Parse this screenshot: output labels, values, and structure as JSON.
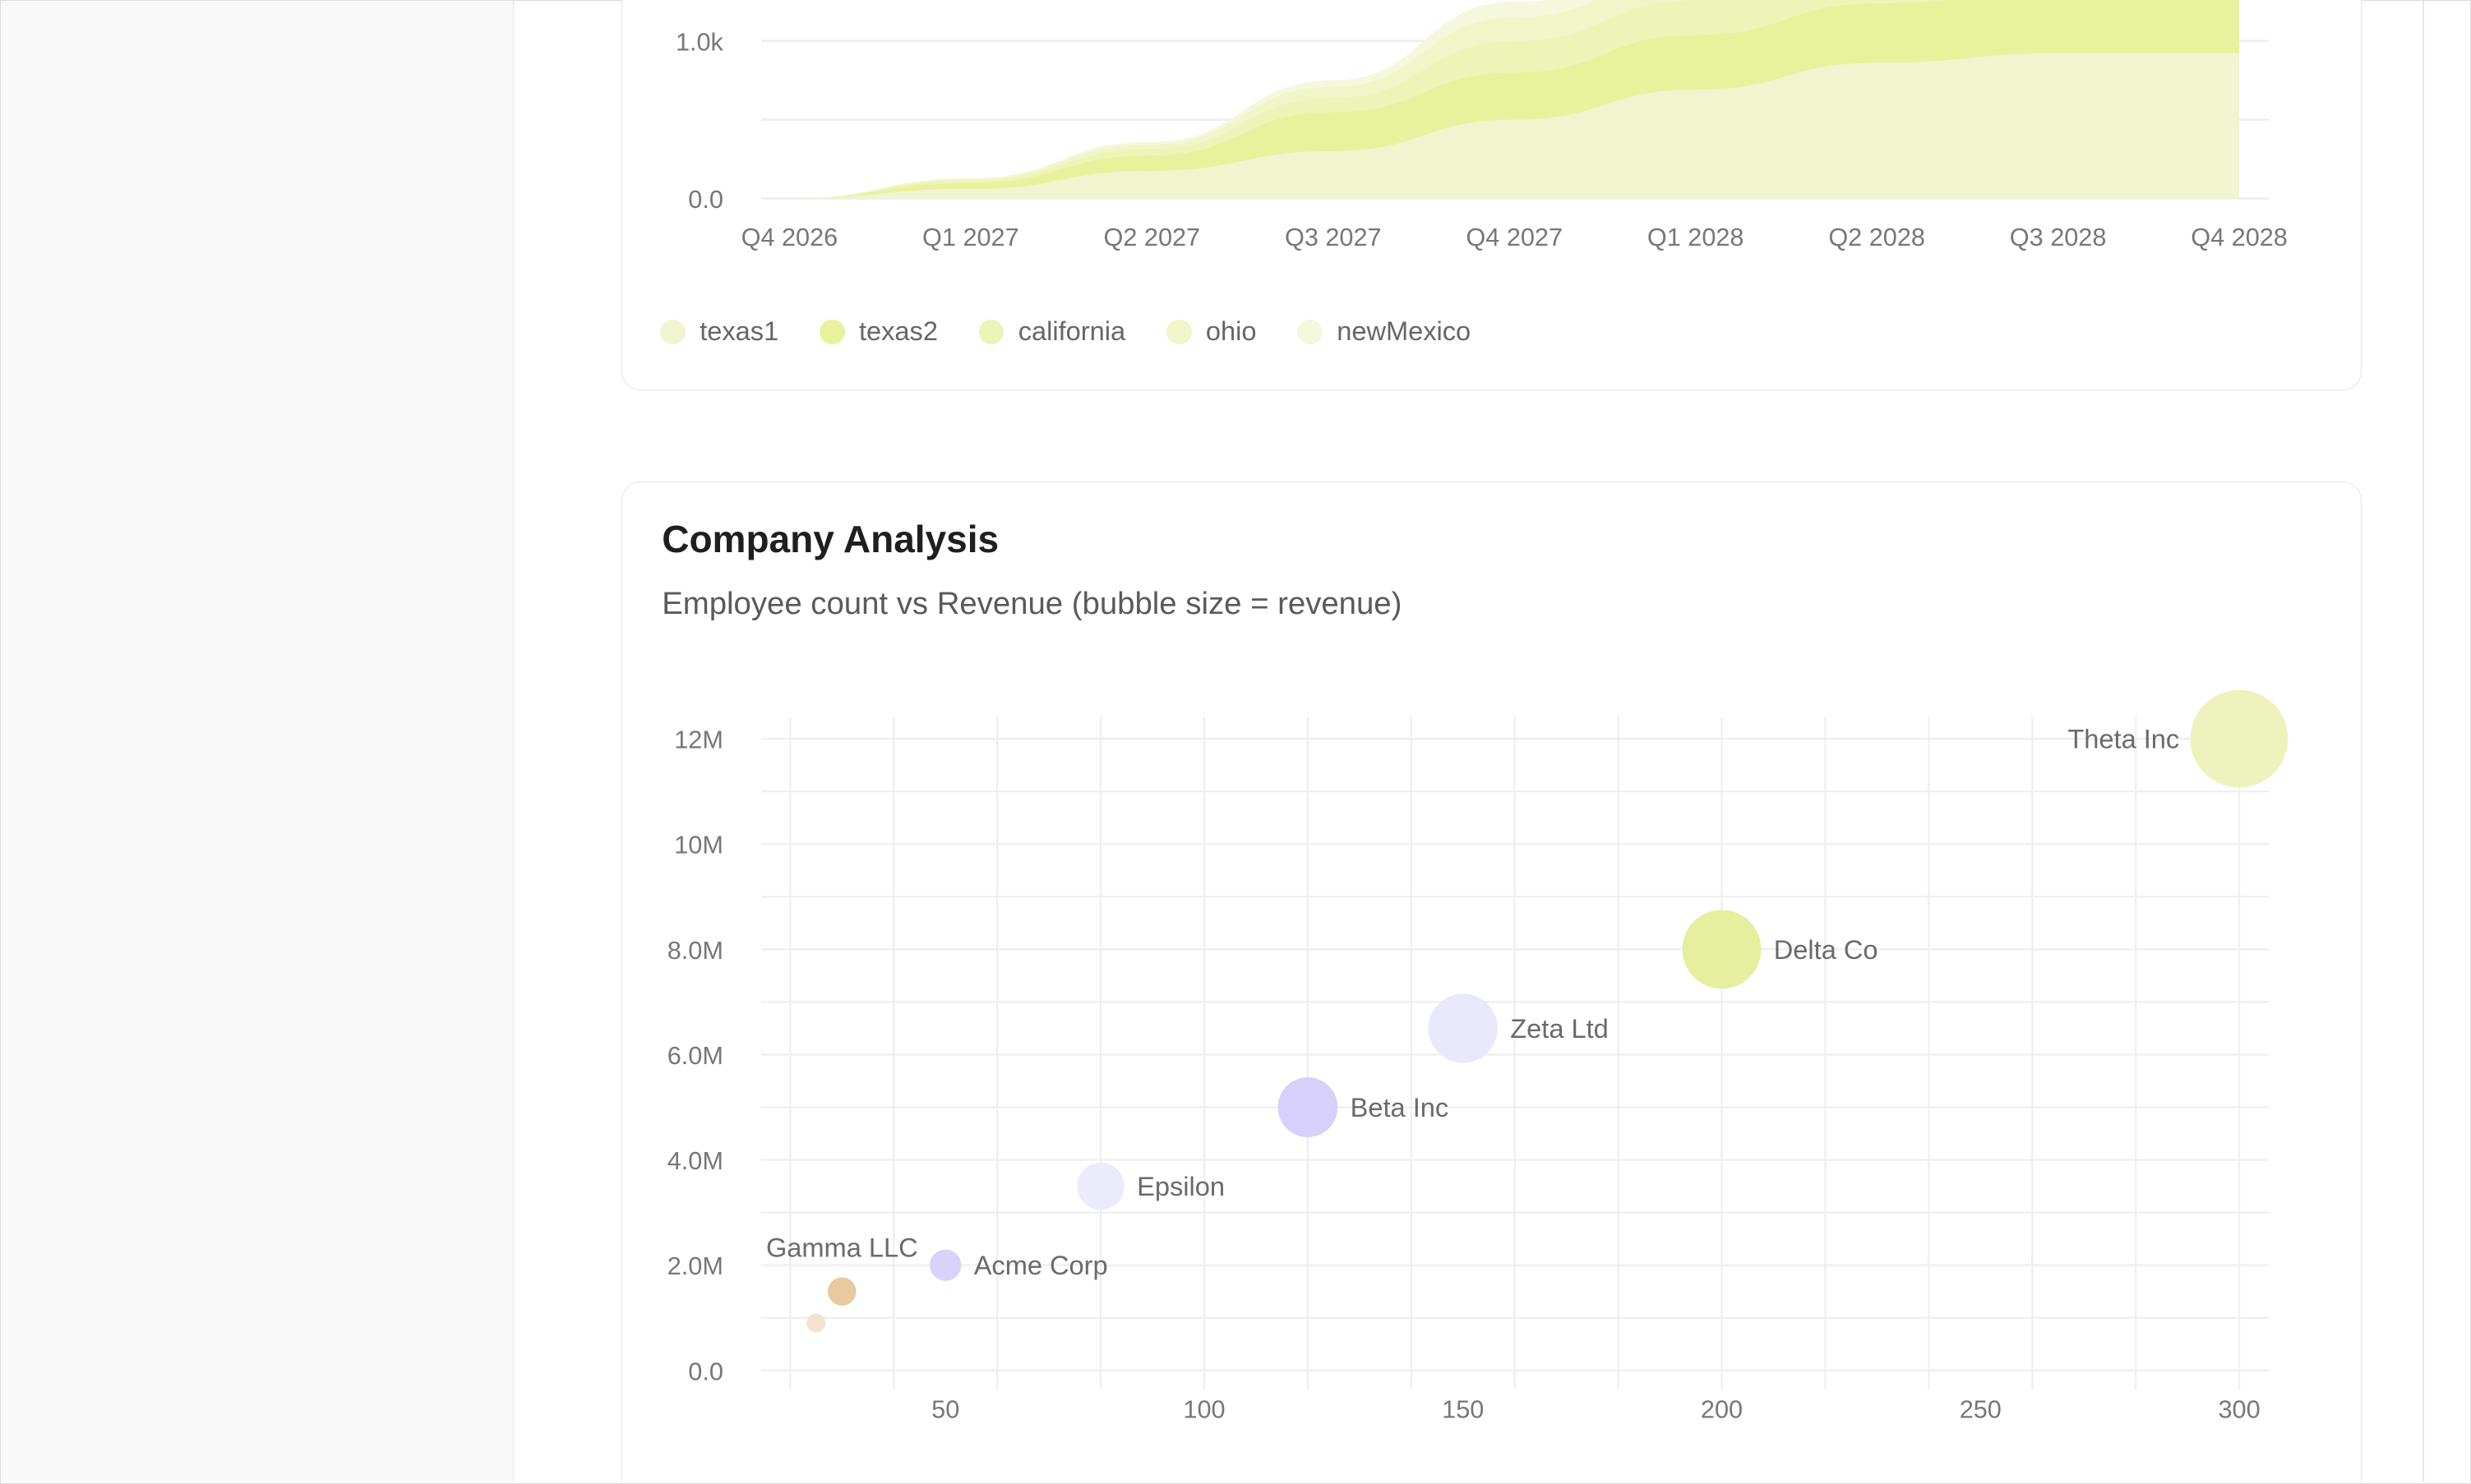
{
  "colors": {
    "grid": "#efefef",
    "tick": "#777777"
  },
  "chart_data": [
    {
      "type": "area",
      "stacked": true,
      "x": [
        "Q4 2026",
        "Q1 2027",
        "Q2 2027",
        "Q3 2027",
        "Q4 2027",
        "Q1 2028",
        "Q2 2028",
        "Q3 2028",
        "Q4 2028"
      ],
      "y_ticks": [
        "0.0",
        "1.0k"
      ],
      "y_tick_values": [
        0,
        1000
      ],
      "series": [
        {
          "name": "texas1",
          "color": "#f0f5cf",
          "values": [
            0,
            60,
            175,
            300,
            500,
            690,
            860,
            920,
            920
          ]
        },
        {
          "name": "texas2",
          "color": "#e8f29d",
          "values": [
            0,
            40,
            100,
            250,
            300,
            350,
            380,
            400,
            400
          ]
        },
        {
          "name": "california",
          "color": "#edf4b8",
          "values": [
            0,
            15,
            40,
            90,
            200,
            220,
            240,
            250,
            260
          ]
        },
        {
          "name": "ohio",
          "color": "#f1f6c8",
          "values": [
            0,
            10,
            30,
            70,
            150,
            170,
            190,
            200,
            210
          ]
        },
        {
          "name": "newMexico",
          "color": "#f5f8dc",
          "values": [
            0,
            5,
            15,
            40,
            100,
            120,
            150,
            160,
            170
          ]
        }
      ],
      "legend": "bottom-left",
      "grid": true
    },
    {
      "type": "scatter",
      "title": "Company Analysis",
      "subtitle": "Employee count vs Revenue (bubble size = revenue)",
      "x_ticks": [
        "50",
        "100",
        "150",
        "200",
        "250",
        "300"
      ],
      "x_tick_values": [
        50,
        100,
        150,
        200,
        250,
        300
      ],
      "y_ticks": [
        "0.0",
        "2.0M",
        "4.0M",
        "6.0M",
        "8.0M",
        "10M",
        "12M"
      ],
      "y_tick_values": [
        0,
        2000000,
        4000000,
        6000000,
        8000000,
        10000000,
        12000000
      ],
      "xlim": [
        14,
        306
      ],
      "ylim": [
        0,
        12000000
      ],
      "grid": true,
      "points": [
        {
          "label": "",
          "x": 25,
          "y": 900000,
          "size": 6,
          "color": "#f2e3d0"
        },
        {
          "label": "Gamma LLC",
          "x": 30,
          "y": 1500000,
          "size": 9,
          "color": "#e8c9a0",
          "label_pos": "above"
        },
        {
          "label": "Acme Corp",
          "x": 50,
          "y": 2000000,
          "size": 10,
          "color": "#d8d3fa"
        },
        {
          "label": "Epsilon",
          "x": 80,
          "y": 3500000,
          "size": 15,
          "color": "#ecebfb"
        },
        {
          "label": "Beta Inc",
          "x": 120,
          "y": 5000000,
          "size": 19,
          "color": "#d6d0fa"
        },
        {
          "label": "Zeta Ltd",
          "x": 150,
          "y": 6500000,
          "size": 22,
          "color": "#eae9fb"
        },
        {
          "label": "Delta Co",
          "x": 200,
          "y": 8000000,
          "size": 25,
          "color": "#e5ef9d"
        },
        {
          "label": "Theta Inc",
          "x": 300,
          "y": 12000000,
          "size": 31,
          "color": "#eef3bd",
          "label_pos": "left"
        }
      ]
    }
  ]
}
